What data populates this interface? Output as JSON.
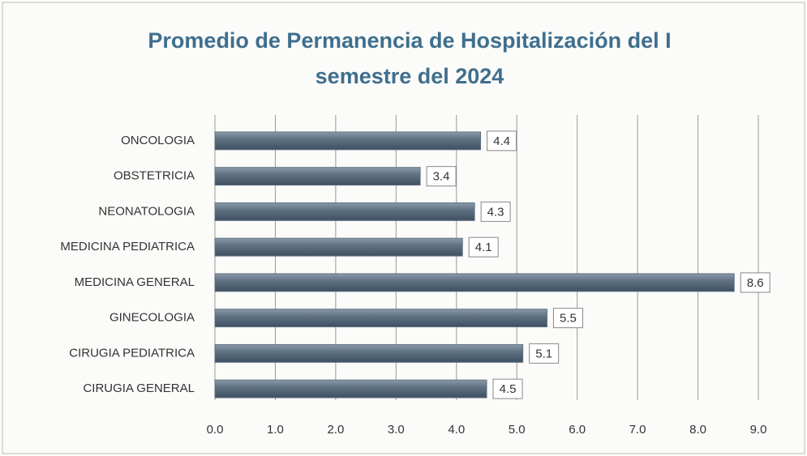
{
  "chart_data": {
    "type": "barh",
    "title": "Promedio de Permanencia de Hospitalización del I semestre del 2024",
    "categories": [
      "ONCOLOGIA",
      "OBSTETRICIA",
      "NEONATOLOGIA",
      "MEDICINA PEDIATRICA",
      "MEDICINA GENERAL",
      "GINECOLOGIA",
      "CIRUGIA PEDIATRICA",
      "CIRUGIA GENERAL"
    ],
    "values": [
      4.4,
      3.4,
      4.3,
      4.1,
      8.6,
      5.5,
      5.1,
      4.5
    ],
    "color": "#5f7284",
    "xlim": [
      0,
      9
    ],
    "xticks": [
      {
        "value": 0,
        "label": "0.0"
      },
      {
        "value": 1,
        "label": "1.0"
      },
      {
        "value": 2,
        "label": "2.0"
      },
      {
        "value": 3,
        "label": "3.0"
      },
      {
        "value": 4,
        "label": "4.0"
      },
      {
        "value": 5,
        "label": "5.0"
      },
      {
        "value": 6,
        "label": "6.0"
      },
      {
        "value": 7,
        "label": "7.0"
      },
      {
        "value": 8,
        "label": "8.0"
      },
      {
        "value": 9,
        "label": "9.0"
      }
    ],
    "grid": true
  }
}
